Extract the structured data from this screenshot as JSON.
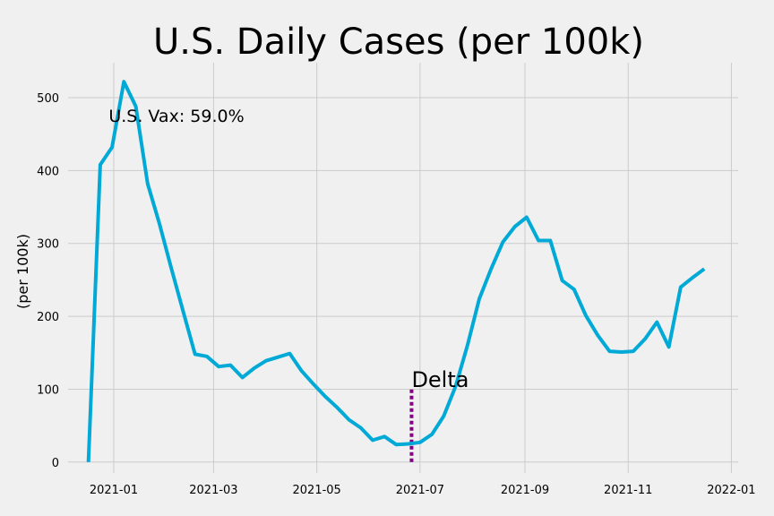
{
  "chart_data": {
    "type": "line",
    "title": "U.S. Daily Cases (per 100k)",
    "xlabel": "",
    "ylabel": "(per 100k)",
    "xlim": [
      "2020-12-05",
      "2022-01-05"
    ],
    "ylim": [
      -15,
      548
    ],
    "grid": true,
    "line_color": "#00a9d6",
    "x_ticks": [
      "2021-01",
      "2021-03",
      "2021-05",
      "2021-07",
      "2021-09",
      "2021-11",
      "2022-01"
    ],
    "y_ticks": [
      0,
      100,
      200,
      300,
      400,
      500
    ],
    "series": [
      {
        "x": [
          "2020-12-17",
          "2020-12-24",
          "2020-12-31",
          "2021-01-07",
          "2021-01-14",
          "2021-01-21",
          "2021-01-28",
          "2021-02-04",
          "2021-02-11",
          "2021-02-18",
          "2021-02-25",
          "2021-03-04",
          "2021-03-11",
          "2021-03-18",
          "2021-03-25",
          "2021-04-01",
          "2021-04-08",
          "2021-04-15",
          "2021-04-22",
          "2021-04-29",
          "2021-05-06",
          "2021-05-13",
          "2021-05-20",
          "2021-05-27",
          "2021-06-03",
          "2021-06-10",
          "2021-06-17",
          "2021-06-24",
          "2021-07-01",
          "2021-07-08",
          "2021-07-15",
          "2021-07-22",
          "2021-07-29",
          "2021-08-05",
          "2021-08-12",
          "2021-08-19",
          "2021-08-26",
          "2021-09-02",
          "2021-09-09",
          "2021-09-16",
          "2021-09-23",
          "2021-09-30",
          "2021-10-07",
          "2021-10-14",
          "2021-10-21",
          "2021-10-28",
          "2021-11-04",
          "2021-11-11",
          "2021-11-18",
          "2021-11-25",
          "2021-12-02",
          "2021-12-09",
          "2021-12-16"
        ],
        "values": [
          0,
          408,
          432,
          522,
          488,
          382,
          327,
          266,
          207,
          148,
          145,
          131,
          133,
          116,
          129,
          139,
          144,
          149,
          125,
          107,
          90,
          75,
          58,
          47,
          30,
          35,
          24,
          25,
          27,
          38,
          63,
          104,
          160,
          224,
          265,
          302,
          323,
          336,
          304,
          304,
          249,
          237,
          201,
          174,
          152,
          151,
          152,
          169,
          192,
          158,
          240,
          253,
          265
        ]
      }
    ],
    "annotations": [
      {
        "text": "U.S. Vax: 59.0%",
        "x": "2020-12-29",
        "y": 467
      },
      {
        "text": "Delta",
        "x": "2021-06-26",
        "y": 103
      }
    ],
    "marker_line": {
      "x": "2021-06-26",
      "y_from": 0,
      "y_to": 100,
      "color": "#800080"
    }
  }
}
